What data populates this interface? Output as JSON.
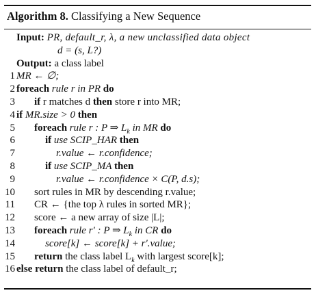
{
  "algorithm": {
    "title_label": "Algorithm 8.",
    "title_text": "Classifying a New Sequence",
    "input_label": "Input:",
    "input_text": "PR, default_r, λ, a new unclassified data object",
    "input_text_cont": "d = (s, L?)",
    "output_label": "Output:",
    "output_text": "a class label"
  },
  "lines": [
    {
      "n": "1",
      "parts": [
        {
          "t": "MR ← ∅;",
          "s": "it"
        }
      ]
    },
    {
      "n": "2",
      "parts": [
        {
          "t": "foreach ",
          "s": "kw"
        },
        {
          "t": "rule r in PR ",
          "s": "it"
        },
        {
          "t": "do",
          "s": "kw"
        }
      ]
    },
    {
      "n": "3",
      "parts": [
        {
          "t": "if ",
          "s": "kw"
        },
        {
          "t": "r matches d ",
          "s": ""
        },
        {
          "t": "then ",
          "s": "kw"
        },
        {
          "t": "store r into MR;",
          "s": ""
        }
      ]
    },
    {
      "n": "4",
      "parts": [
        {
          "t": "if ",
          "s": "kw"
        },
        {
          "t": "MR.size > 0 ",
          "s": "it"
        },
        {
          "t": "then",
          "s": "kw"
        }
      ]
    },
    {
      "n": "5",
      "parts": [
        {
          "t": "foreach ",
          "s": "kw"
        },
        {
          "t": "rule r : P ⇒ L",
          "s": "it"
        },
        {
          "t": "k",
          "s": "sub"
        },
        {
          "t": " in MR ",
          "s": "it"
        },
        {
          "t": "do",
          "s": "kw"
        }
      ]
    },
    {
      "n": "6",
      "parts": [
        {
          "t": "if ",
          "s": "kw"
        },
        {
          "t": "use SCIP_HAR ",
          "s": "it"
        },
        {
          "t": "then",
          "s": "kw"
        }
      ]
    },
    {
      "n": "7",
      "parts": [
        {
          "t": "r.value ← r.confidence;",
          "s": "it"
        }
      ]
    },
    {
      "n": "8",
      "parts": [
        {
          "t": "if ",
          "s": "kw"
        },
        {
          "t": "use SCIP_MA ",
          "s": "it"
        },
        {
          "t": "then",
          "s": "kw"
        }
      ]
    },
    {
      "n": "9",
      "parts": [
        {
          "t": "r.value ← r.confidence × C(P, d.s);",
          "s": "it"
        }
      ]
    },
    {
      "n": "10",
      "parts": [
        {
          "t": "sort rules in MR by descending r.value;",
          "s": ""
        }
      ]
    },
    {
      "n": "11",
      "parts": [
        {
          "t": "CR ← {the top λ rules in sorted MR};",
          "s": ""
        }
      ]
    },
    {
      "n": "12",
      "parts": [
        {
          "t": "score ← a new array of size |L|;",
          "s": ""
        }
      ]
    },
    {
      "n": "13",
      "parts": [
        {
          "t": "foreach ",
          "s": "kw"
        },
        {
          "t": "rule r′ : P ⇒ L",
          "s": "it"
        },
        {
          "t": "k",
          "s": "sub"
        },
        {
          "t": " in CR ",
          "s": "it"
        },
        {
          "t": "do",
          "s": "kw"
        }
      ]
    },
    {
      "n": "14",
      "parts": [
        {
          "t": "score[k] ← score[k] + r′.value;",
          "s": "it"
        }
      ]
    },
    {
      "n": "15",
      "parts": [
        {
          "t": "return ",
          "s": "kw"
        },
        {
          "t": "the class label L",
          "s": ""
        },
        {
          "t": "k",
          "s": "sub"
        },
        {
          "t": " with largest score[k];",
          "s": ""
        }
      ]
    },
    {
      "n": "16",
      "parts": [
        {
          "t": "else return ",
          "s": "kw"
        },
        {
          "t": "the class label of default_r;",
          "s": ""
        }
      ]
    }
  ]
}
